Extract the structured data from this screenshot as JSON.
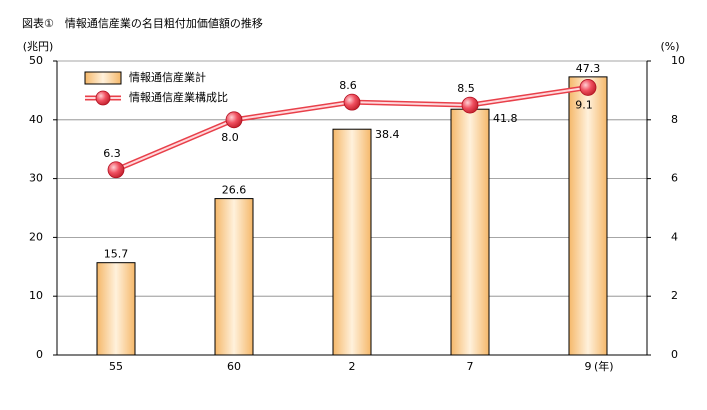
{
  "chart_data": {
    "type": "bar_line",
    "title": "図表①　情報通信産業の名目粗付加価値額の推移",
    "y_label": "(兆円)",
    "y2_label": "(%)",
    "x_label": "(年)",
    "categories": [
      "55",
      "60",
      "2",
      "7",
      "9"
    ],
    "series": [
      {
        "name": "情報通信産業計",
        "type": "bar",
        "color": "#f5b86a",
        "values": [
          15.7,
          26.6,
          38.4,
          41.8,
          47.3
        ]
      },
      {
        "name": "情報通信産業構成比",
        "type": "line",
        "axis": "y2",
        "color": "#e8404a",
        "values": [
          6.3,
          8.0,
          8.6,
          8.5,
          9.1
        ],
        "value_labels": [
          "6.3",
          "8.0",
          "8.6",
          "8.5",
          "9.1"
        ]
      }
    ],
    "ylim": [
      0,
      50
    ],
    "yticks": [
      0,
      10,
      20,
      30,
      40,
      50
    ],
    "y2lim": [
      0,
      10
    ],
    "y2ticks": [
      0,
      2,
      4,
      6,
      8,
      10
    ],
    "grid": true
  }
}
